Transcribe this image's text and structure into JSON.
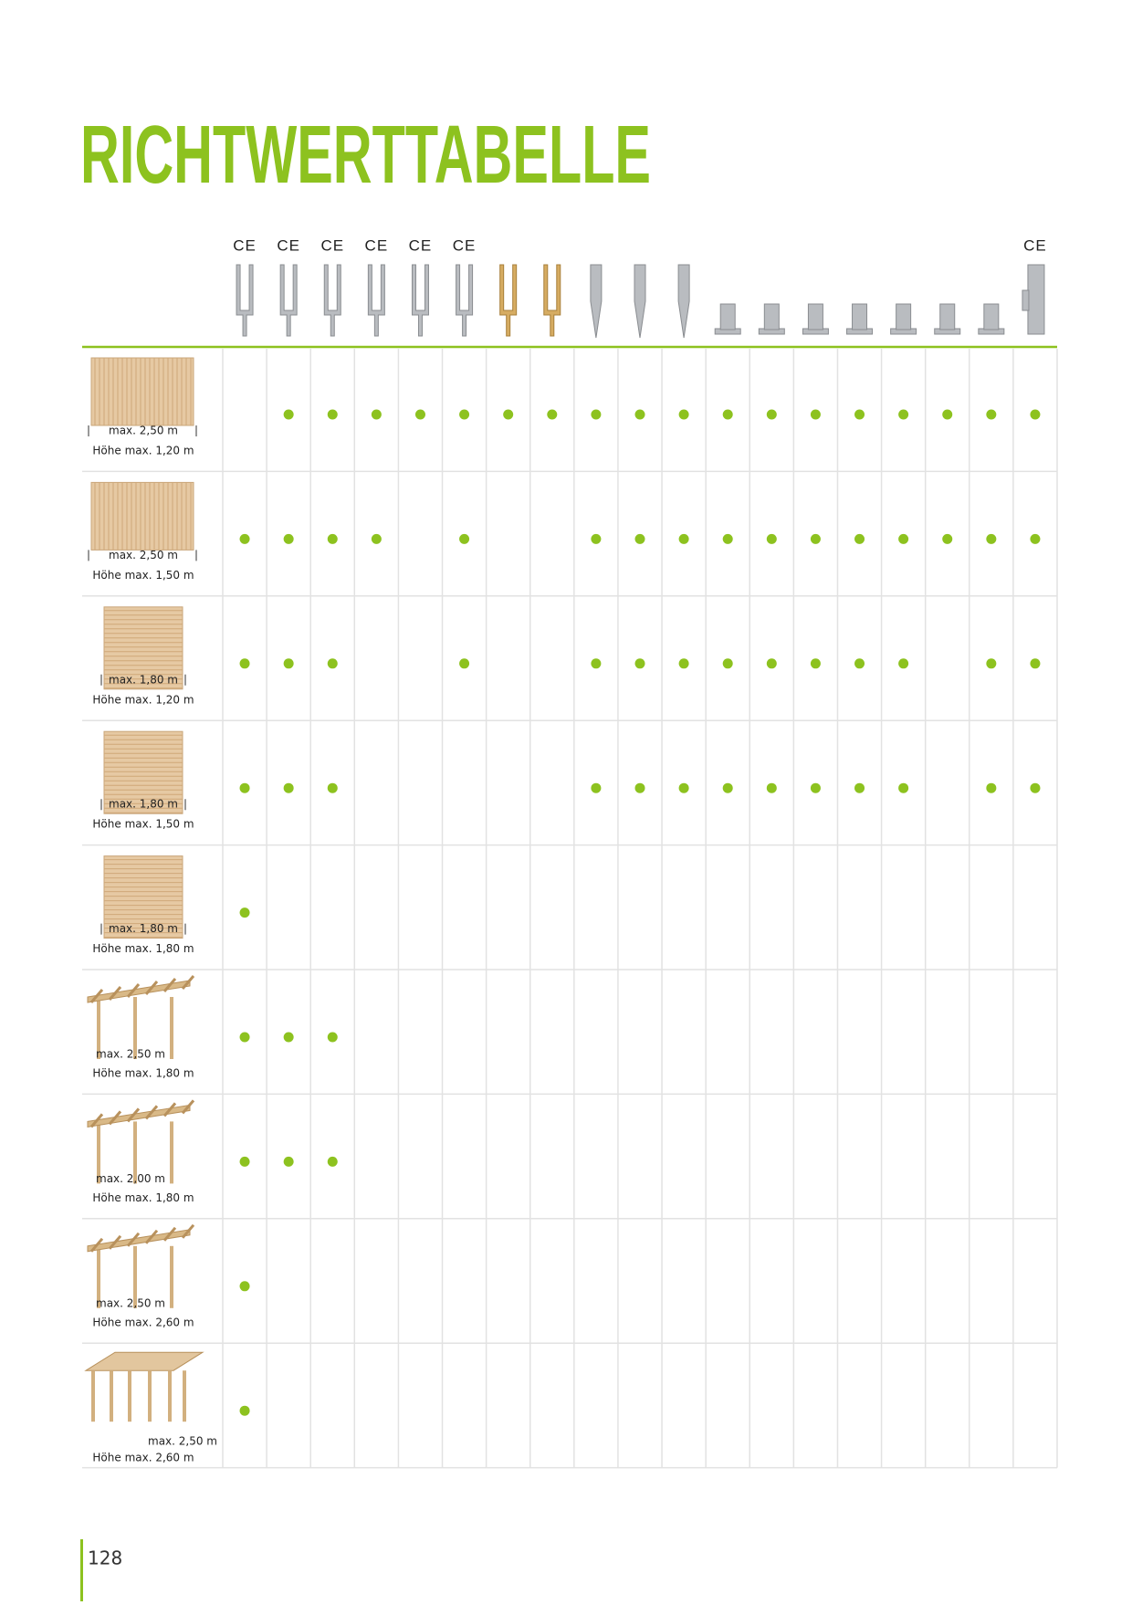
{
  "title": "RICHTWERTTABELLE",
  "columns": [
    {
      "ce": "CE"
    },
    {
      "ce": "CE"
    },
    {
      "ce": "CE"
    },
    {
      "ce": "CE"
    },
    {
      "ce": "CE"
    },
    {
      "ce": "CE"
    },
    {
      "ce": null
    },
    {
      "ce": null
    },
    {
      "ce": null
    },
    {
      "ce": null
    },
    {
      "ce": null
    },
    {
      "ce": null
    },
    {
      "ce": null
    },
    {
      "ce": null
    },
    {
      "ce": null
    },
    {
      "ce": null
    },
    {
      "ce": null
    },
    {
      "ce": null
    },
    {
      "ce": "CE"
    }
  ],
  "rows": [
    {
      "width": "max. 2,50 m",
      "height": "Höhe max. 1,20 m",
      "cells": [
        false,
        true,
        true,
        true,
        true,
        true,
        true,
        true,
        true,
        true,
        true,
        true,
        true,
        true,
        true,
        true,
        true,
        true,
        true
      ]
    },
    {
      "width": "max. 2,50 m",
      "height": "Höhe max. 1,50 m",
      "cells": [
        true,
        true,
        true,
        true,
        false,
        true,
        false,
        false,
        true,
        true,
        true,
        true,
        true,
        true,
        true,
        true,
        true,
        true,
        true
      ]
    },
    {
      "width": "max. 1,80 m",
      "height": "Höhe max. 1,20 m",
      "cells": [
        true,
        true,
        true,
        false,
        false,
        true,
        false,
        false,
        true,
        true,
        true,
        true,
        true,
        true,
        true,
        true,
        false,
        true,
        true
      ]
    },
    {
      "width": "max. 1,80 m",
      "height": "Höhe max. 1,50 m",
      "cells": [
        true,
        true,
        true,
        false,
        false,
        false,
        false,
        false,
        true,
        true,
        true,
        true,
        true,
        true,
        true,
        true,
        false,
        true,
        true
      ]
    },
    {
      "width": "max. 1,80 m",
      "height": "Höhe max. 1,80 m",
      "cells": [
        true,
        false,
        false,
        false,
        false,
        false,
        false,
        false,
        false,
        false,
        false,
        false,
        false,
        false,
        false,
        false,
        false,
        false,
        false
      ]
    },
    {
      "width": "max. 2,50 m",
      "height": "Höhe max. 1,80 m",
      "cells": [
        true,
        true,
        true,
        false,
        false,
        false,
        false,
        false,
        false,
        false,
        false,
        false,
        false,
        false,
        false,
        false,
        false,
        false,
        false
      ]
    },
    {
      "width": "max. 2,00 m",
      "height": "Höhe max. 1,80 m",
      "cells": [
        true,
        true,
        true,
        false,
        false,
        false,
        false,
        false,
        false,
        false,
        false,
        false,
        false,
        false,
        false,
        false,
        false,
        false,
        false
      ]
    },
    {
      "width": "max. 2,50 m",
      "height": "Höhe max. 2,60 m",
      "cells": [
        true,
        false,
        false,
        false,
        false,
        false,
        false,
        false,
        false,
        false,
        false,
        false,
        false,
        false,
        false,
        false,
        false,
        false,
        false
      ]
    },
    {
      "width": "max. 2,50 m",
      "height": "Höhe max. 2,60 m",
      "cells": [
        true,
        false,
        false,
        false,
        false,
        false,
        false,
        false,
        false,
        false,
        false,
        false,
        false,
        false,
        false,
        false,
        false,
        false,
        false
      ]
    }
  ],
  "page_number": "128"
}
